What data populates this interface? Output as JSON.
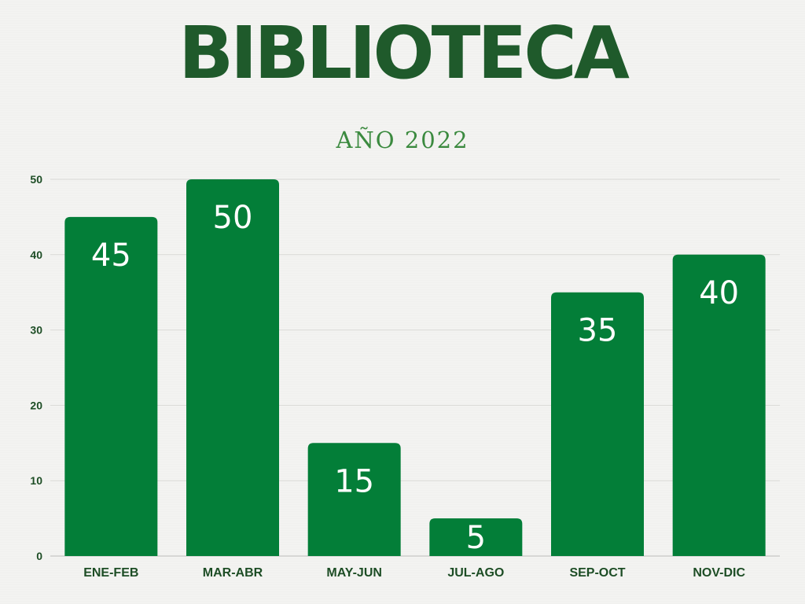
{
  "title": "BIBLIOTECA",
  "subtitle": "AÑO 2022",
  "colors": {
    "bar": "#037e38",
    "title": "#1f5a2b",
    "subtitle": "#3b8a3f",
    "gridline": "#d9d9d6",
    "tick_text": "#1d4d25"
  },
  "chart_data": {
    "type": "bar",
    "title": "BIBLIOTECA",
    "subtitle": "AÑO 2022",
    "categories": [
      "ENE-FEB",
      "MAR-ABR",
      "MAY-JUN",
      "JUL-AGO",
      "SEP-OCT",
      "NOV-DIC"
    ],
    "values": [
      45,
      50,
      15,
      5,
      35,
      40
    ],
    "data_labels": [
      "45",
      "50",
      "15",
      "5",
      "35",
      "40"
    ],
    "ylim": [
      0,
      50
    ],
    "yticks": [
      "0",
      "10",
      "20",
      "30",
      "40",
      "50"
    ],
    "ytick_values": [
      0,
      10,
      20,
      30,
      40,
      50
    ],
    "xlabel": "",
    "ylabel": "",
    "grid": true,
    "legend": "none"
  }
}
